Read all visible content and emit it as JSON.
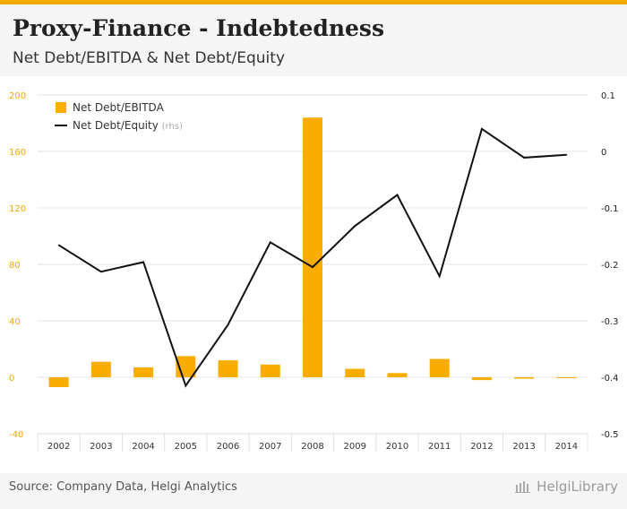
{
  "header": {
    "title": "Proxy-Finance - Indebtedness",
    "subtitle": "Net Debt/EBITDA & Net Debt/Equity"
  },
  "footer": {
    "source": "Source: Company Data, Helgi Analytics",
    "brand": "HelgiLibrary"
  },
  "colors": {
    "bar": "#f9ad00",
    "line": "#111111",
    "accent": "#f2a900"
  },
  "chart_data": {
    "type": "bar+line",
    "categories": [
      "2002",
      "2003",
      "2004",
      "2005",
      "2006",
      "2007",
      "2008",
      "2009",
      "2010",
      "2011",
      "2012",
      "2013",
      "2014"
    ],
    "series": [
      {
        "name": "Net Debt/EBITDA",
        "kind": "bar",
        "axis": "left",
        "values": [
          -7,
          11,
          7,
          15,
          12,
          9,
          184,
          6,
          3,
          13,
          -2,
          -1,
          0
        ]
      },
      {
        "name": "Net Debt/Equity",
        "kind": "line",
        "axis": "right",
        "values": [
          -0.166,
          -0.213,
          -0.196,
          -0.415,
          -0.307,
          -0.161,
          -0.205,
          -0.132,
          -0.077,
          -0.221,
          0.04,
          -0.011,
          -0.006
        ]
      }
    ],
    "legend": [
      {
        "label": "Net Debt/EBITDA",
        "suffix": ""
      },
      {
        "label": "Net Debt/Equity",
        "suffix": "(rhs)"
      }
    ],
    "left_axis": {
      "min": -40,
      "max": 200,
      "ticks": [
        "200",
        "160",
        "120",
        "80",
        "40",
        "0",
        "-40"
      ]
    },
    "right_axis": {
      "min": -0.5,
      "max": 0.1,
      "ticks": [
        "0.1",
        "0",
        "-0.1",
        "-0.2",
        "-0.3",
        "-0.4",
        "-0.5"
      ]
    },
    "legend_position": "top-left",
    "grid": true
  }
}
